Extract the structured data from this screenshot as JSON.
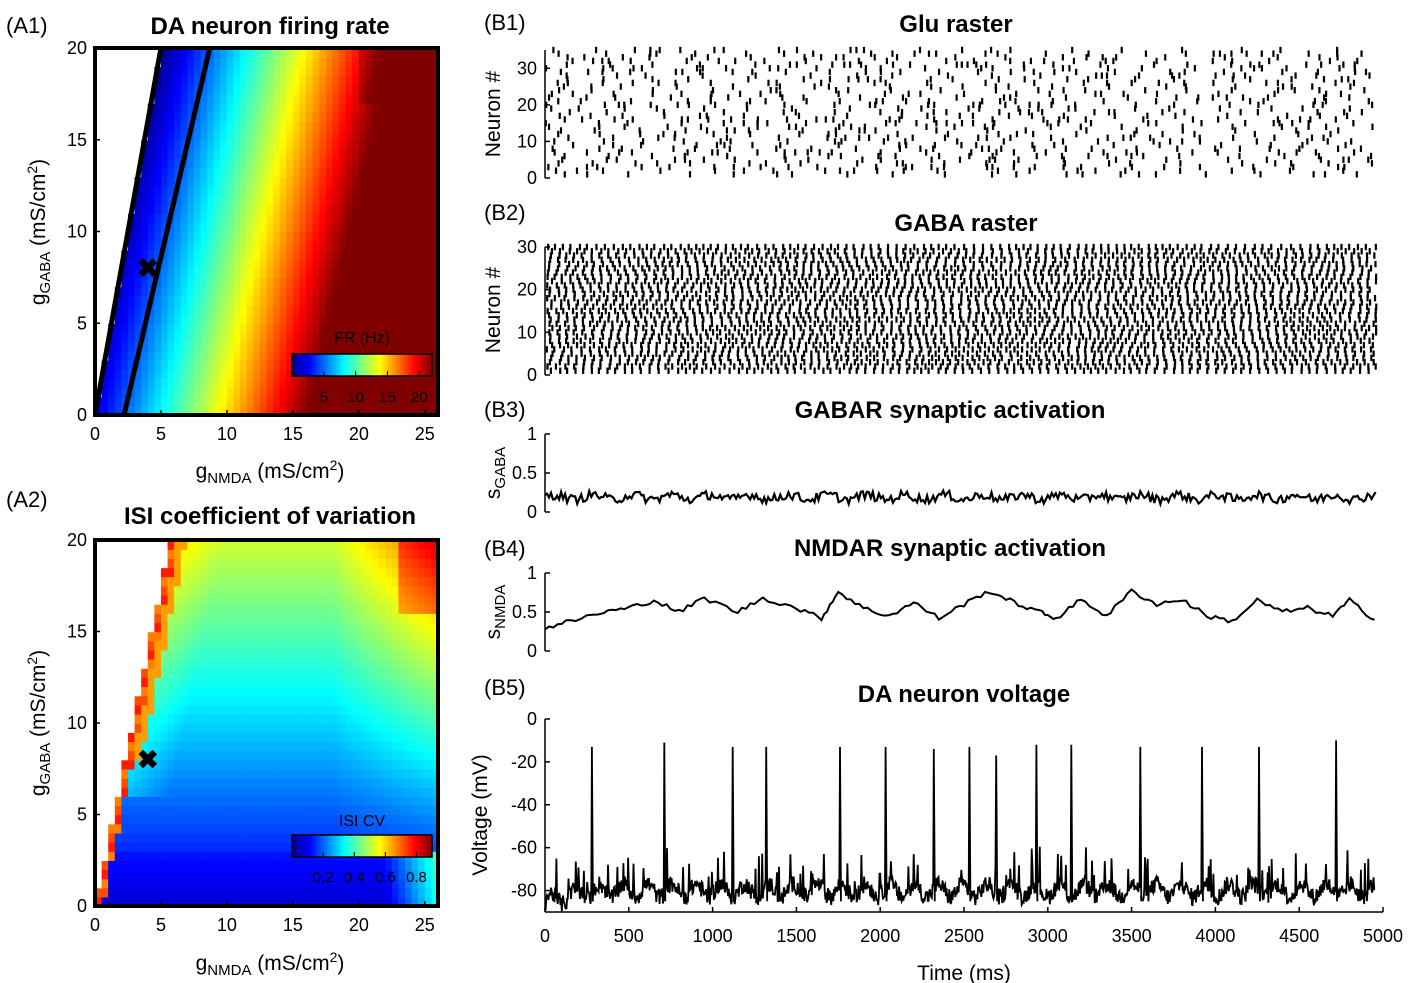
{
  "panels": {
    "A1": "(A1)",
    "A2": "(A2)",
    "B1": "(B1)",
    "B2": "(B2)",
    "B3": "(B3)",
    "B4": "(B4)",
    "B5": "(B5)"
  },
  "chart_data": [
    {
      "id": "A1",
      "type": "heatmap",
      "title": "DA neuron firing rate",
      "xlabel": "g_NMDA (mS/cm^2)",
      "ylabel": "g_GABA (mS/cm^2)",
      "xlim": [
        0,
        26
      ],
      "ylim": [
        0,
        20
      ],
      "xticks": [
        "0",
        "5",
        "10",
        "15",
        "20",
        "25"
      ],
      "yticks": [
        "0",
        "5",
        "10",
        "15",
        "20"
      ],
      "colorbar": {
        "label": "FR (Hz)",
        "ticks": [
          "5",
          "10",
          "15",
          "20"
        ],
        "range": [
          0,
          22
        ]
      },
      "colormap": "jet",
      "marker": {
        "x": 4,
        "y": 8,
        "symbol": "x"
      },
      "boundary_lines": [
        {
          "x0": 0,
          "y0": 0,
          "x1": 5,
          "y1": 20
        },
        {
          "x0": 2.2,
          "y0": 0,
          "x1": 8.7,
          "y1": 20
        }
      ],
      "legend": "none",
      "grid": false
    },
    {
      "id": "A2",
      "type": "heatmap",
      "title": "ISI coefficient of variation",
      "xlabel": "g_NMDA (mS/cm^2)",
      "ylabel": "g_GABA (mS/cm^2)",
      "xlim": [
        0,
        26
      ],
      "ylim": [
        0,
        20
      ],
      "xticks": [
        "0",
        "5",
        "10",
        "15",
        "20",
        "25"
      ],
      "yticks": [
        "0",
        "5",
        "10",
        "15",
        "20"
      ],
      "colorbar": {
        "label": "ISI CV",
        "ticks": [
          "0.2",
          "0.4",
          "0.6",
          "0.8"
        ],
        "range": [
          0,
          0.9
        ]
      },
      "colormap": "jet",
      "marker": {
        "x": 4,
        "y": 8,
        "symbol": "x"
      },
      "legend": "none",
      "grid": false
    },
    {
      "id": "B1",
      "type": "scatter",
      "title": "Glu raster",
      "ylabel": "Neuron #",
      "xlim": [
        0,
        5000
      ],
      "ylim": [
        0,
        35
      ],
      "yticks": [
        "0",
        "10",
        "20",
        "30"
      ],
      "neurons": 35,
      "approx_rate_hz": 5,
      "legend": "none",
      "grid": false
    },
    {
      "id": "B2",
      "type": "scatter",
      "title": "GABA raster",
      "ylabel": "Neuron #",
      "xlim": [
        0,
        5000
      ],
      "ylim": [
        0,
        30
      ],
      "yticks": [
        "0",
        "10",
        "20",
        "30"
      ],
      "neurons": 30,
      "approx_rate_hz": 20,
      "legend": "none",
      "grid": false
    },
    {
      "id": "B3",
      "type": "line",
      "title": "GABAR synaptic activation",
      "ylabel": "s_GABA",
      "xlim": [
        0,
        5000
      ],
      "ylim": [
        0,
        1
      ],
      "yticks": [
        "0",
        "0.5",
        "1"
      ],
      "series": [
        {
          "mean": 0.19,
          "fluct": 0.06
        }
      ],
      "legend": "none",
      "grid": false
    },
    {
      "id": "B4",
      "type": "line",
      "title": "NMDAR synaptic activation",
      "ylabel": "s_NMDA",
      "xlim": [
        0,
        5000
      ],
      "ylim": [
        0,
        1
      ],
      "yticks": [
        "0",
        "0.5",
        "1"
      ],
      "series": [
        {
          "points": [
            [
              0,
              0.3
            ],
            [
              150,
              0.38
            ],
            [
              350,
              0.5
            ],
            [
              500,
              0.55
            ],
            [
              650,
              0.65
            ],
            [
              800,
              0.5
            ],
            [
              950,
              0.68
            ],
            [
              1150,
              0.5
            ],
            [
              1300,
              0.68
            ],
            [
              1500,
              0.55
            ],
            [
              1650,
              0.42
            ],
            [
              1750,
              0.76
            ],
            [
              1900,
              0.55
            ],
            [
              2050,
              0.45
            ],
            [
              2200,
              0.62
            ],
            [
              2350,
              0.42
            ],
            [
              2500,
              0.6
            ],
            [
              2650,
              0.77
            ],
            [
              2800,
              0.62
            ],
            [
              2950,
              0.5
            ],
            [
              3050,
              0.42
            ],
            [
              3200,
              0.66
            ],
            [
              3350,
              0.45
            ],
            [
              3500,
              0.77
            ],
            [
              3650,
              0.6
            ],
            [
              3800,
              0.66
            ],
            [
              3950,
              0.45
            ],
            [
              4100,
              0.38
            ],
            [
              4250,
              0.65
            ],
            [
              4400,
              0.5
            ],
            [
              4550,
              0.55
            ],
            [
              4700,
              0.45
            ],
            [
              4800,
              0.65
            ],
            [
              4950,
              0.4
            ]
          ]
        }
      ],
      "legend": "none",
      "grid": false
    },
    {
      "id": "B5",
      "type": "line",
      "title": "DA neuron voltage",
      "xlabel": "Time (ms)",
      "ylabel": "Voltage (mV)",
      "xlim": [
        0,
        5000
      ],
      "ylim": [
        -90,
        0
      ],
      "xticks": [
        "0",
        "500",
        "1000",
        "1500",
        "2000",
        "2500",
        "3000",
        "3500",
        "4000",
        "4500",
        "5000"
      ],
      "yticks": [
        "-80",
        "-60",
        "-40",
        "-20",
        "0"
      ],
      "baseline_mv": -80,
      "spike_times_ms": [
        280,
        710,
        1120,
        1320,
        1760,
        2030,
        2320,
        2530,
        2690,
        2930,
        3140,
        3550,
        3920,
        4260,
        4720
      ],
      "spike_peaks_mv": [
        -13,
        -11,
        -13,
        -13,
        -13,
        -13,
        -14,
        -13,
        -17,
        -12,
        -12,
        -13,
        -13,
        -13,
        -10
      ],
      "legend": "none",
      "grid": false
    }
  ]
}
